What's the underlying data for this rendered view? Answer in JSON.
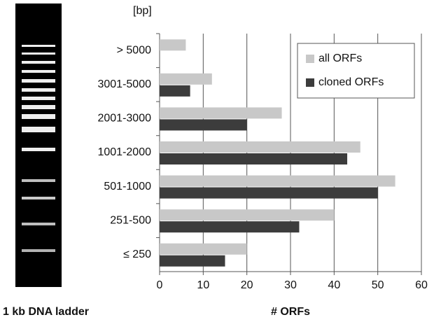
{
  "chart_data": {
    "type": "hbar",
    "y_label": "[bp]",
    "x_label": "# ORFs",
    "ladder_label": "1 kb DNA ladder",
    "categories": [
      "> 5000",
      "3001-5000",
      "2001-3000",
      "1001-2000",
      "501-1000",
      "251-500",
      "≤ 250"
    ],
    "series": [
      {
        "name": "all ORFs",
        "color": "#c8c8c8",
        "values": [
          6,
          12,
          28,
          46,
          54,
          40,
          20
        ]
      },
      {
        "name": "cloned ORFs",
        "color": "#3c3c3c",
        "values": [
          0,
          7,
          20,
          43,
          50,
          32,
          15
        ]
      }
    ],
    "xlim": [
      0,
      60
    ],
    "xticks": [
      0,
      10,
      20,
      30,
      40,
      50,
      60
    ],
    "grid": true,
    "legend": "upper right"
  }
}
